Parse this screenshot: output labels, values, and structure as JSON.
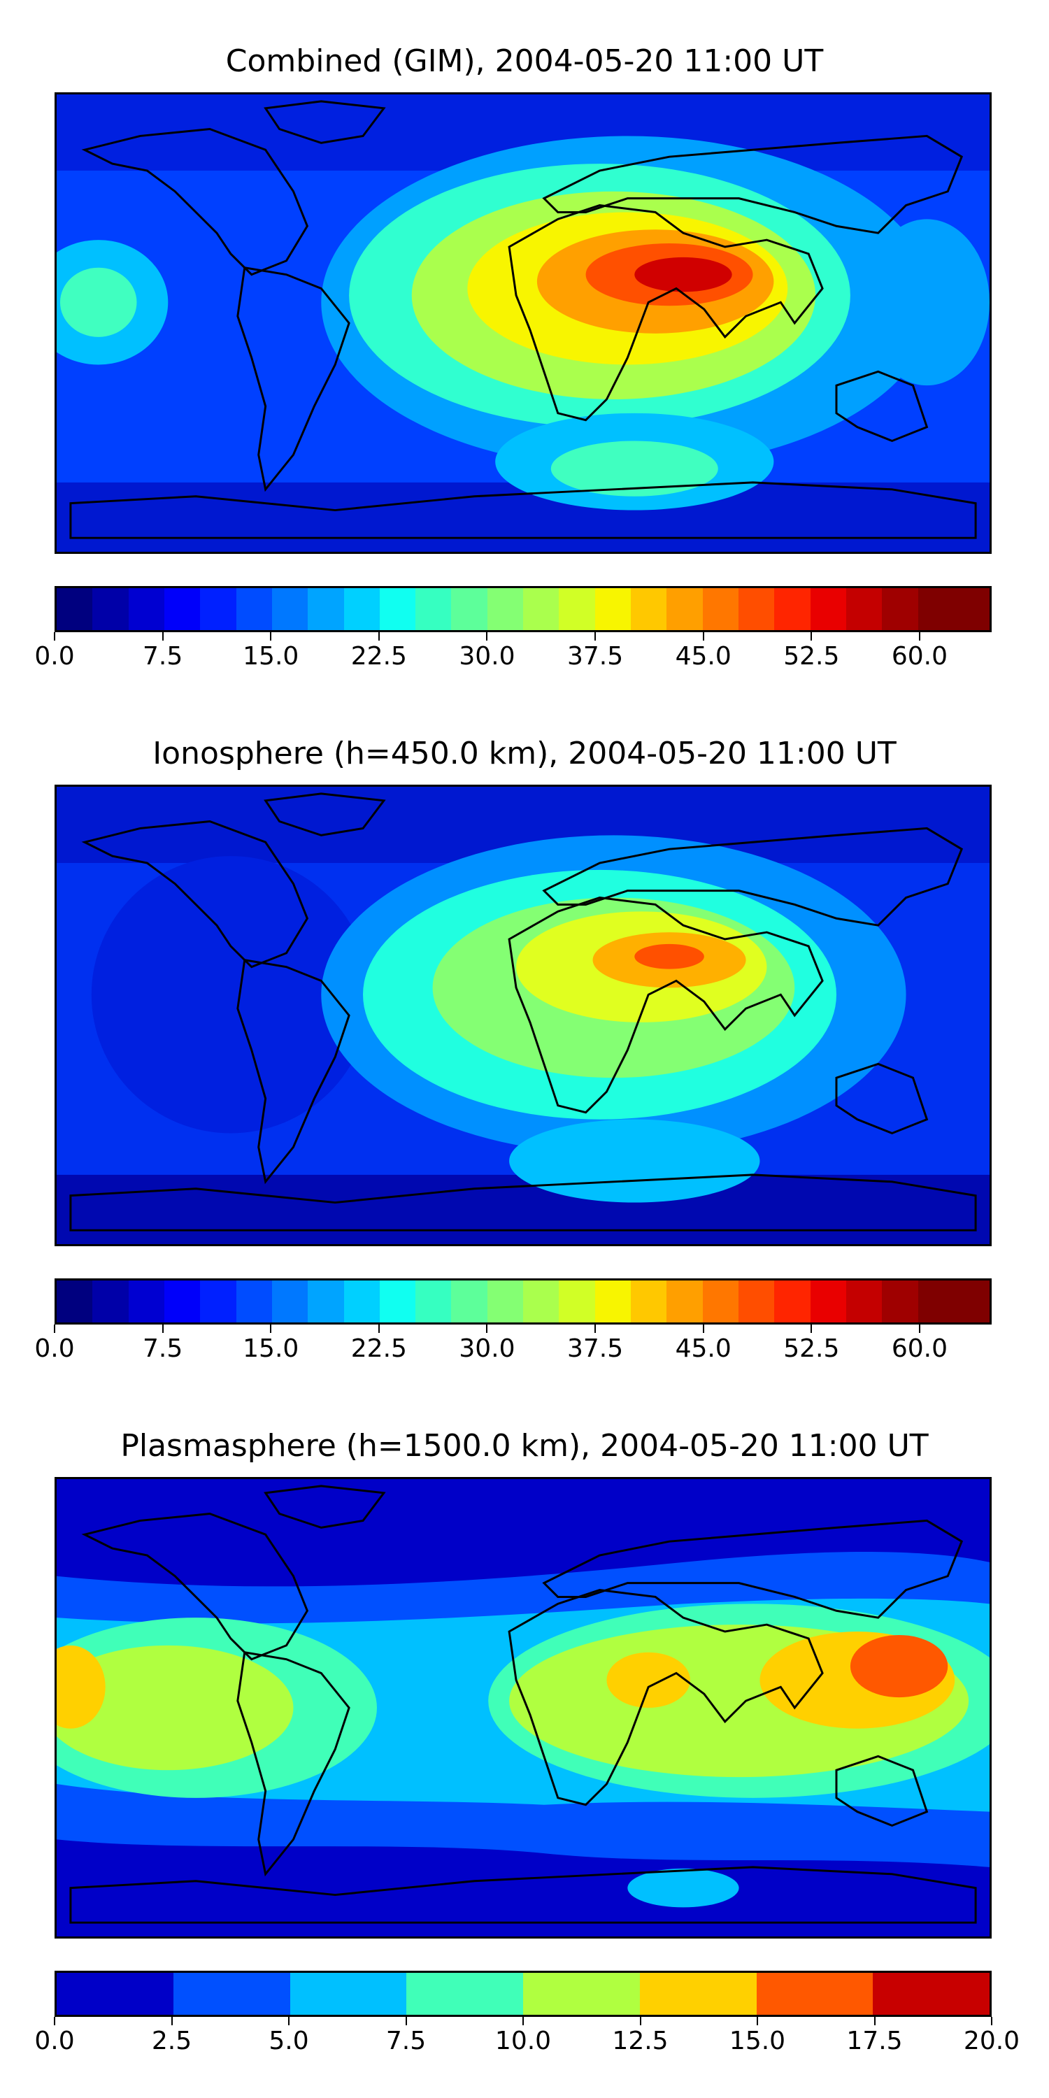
{
  "panels": [
    {
      "title": "Combined (GIM), 2004-05-20 11:00 UT",
      "colorbar": {
        "min": 0.0,
        "max": 65.0,
        "levels": 26,
        "tick_labels": [
          "0.0",
          "7.5",
          "15.0",
          "22.5",
          "30.0",
          "37.5",
          "45.0",
          "52.5",
          "60.0"
        ],
        "tick_values": [
          0.0,
          7.5,
          15.0,
          22.5,
          30.0,
          37.5,
          45.0,
          52.5,
          60.0
        ]
      },
      "colors": [
        "#00007f",
        "#0000a8",
        "#0000d1",
        "#0000fa",
        "#0020ff",
        "#004cff",
        "#0078ff",
        "#00a4ff",
        "#00d0ff",
        "#10fff1",
        "#36ffc1",
        "#5dff9a",
        "#84ff73",
        "#aaff4d",
        "#d1ff26",
        "#f8f500",
        "#ffc800",
        "#ff9f00",
        "#ff7700",
        "#ff4e00",
        "#ff2500",
        "#e90000",
        "#c40000",
        "#9f0000",
        "#7f0000",
        "#7f0000"
      ],
      "field": "combined"
    },
    {
      "title": "Ionosphere  (h=450.0 km), 2004-05-20 11:00 UT",
      "colorbar": {
        "min": 0.0,
        "max": 65.0,
        "levels": 26,
        "tick_labels": [
          "0.0",
          "7.5",
          "15.0",
          "22.5",
          "30.0",
          "37.5",
          "45.0",
          "52.5",
          "60.0"
        ],
        "tick_values": [
          0.0,
          7.5,
          15.0,
          22.5,
          30.0,
          37.5,
          45.0,
          52.5,
          60.0
        ]
      },
      "field": "ionosphere"
    },
    {
      "title": "Plasmasphere (h=1500.0 km), 2004-05-20 11:00 UT",
      "colorbar": {
        "min": 0.0,
        "max": 20.0,
        "levels": 8,
        "tick_labels": [
          "0.0",
          "2.5",
          "5.0",
          "7.5",
          "10.0",
          "12.5",
          "15.0",
          "17.5",
          "20.0"
        ],
        "tick_values": [
          0.0,
          2.5,
          5.0,
          7.5,
          10.0,
          12.5,
          15.0,
          17.5,
          20.0
        ]
      },
      "colors": [
        "#0000c8",
        "#0050ff",
        "#00c0ff",
        "#40ffb8",
        "#b0ff40",
        "#ffd000",
        "#ff5800",
        "#c80000"
      ],
      "field": "plasmasphere"
    }
  ]
}
